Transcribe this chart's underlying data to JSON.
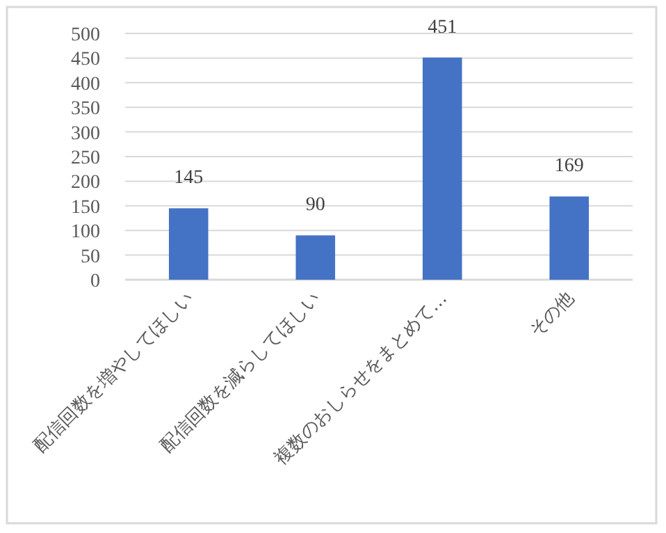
{
  "chart_data": {
    "type": "bar",
    "categories": [
      "配信回数を増やしてほしい",
      "配信回数を減らしてほしい",
      "複数のおしらせをまとめて…",
      "その他"
    ],
    "values": [
      145,
      90,
      451,
      169
    ],
    "color": "#4472c4",
    "ylim": [
      0,
      500
    ],
    "yticks": [
      0,
      50,
      100,
      150,
      200,
      250,
      300,
      350,
      400,
      450,
      500
    ],
    "grid": "y",
    "data_labels": true
  }
}
